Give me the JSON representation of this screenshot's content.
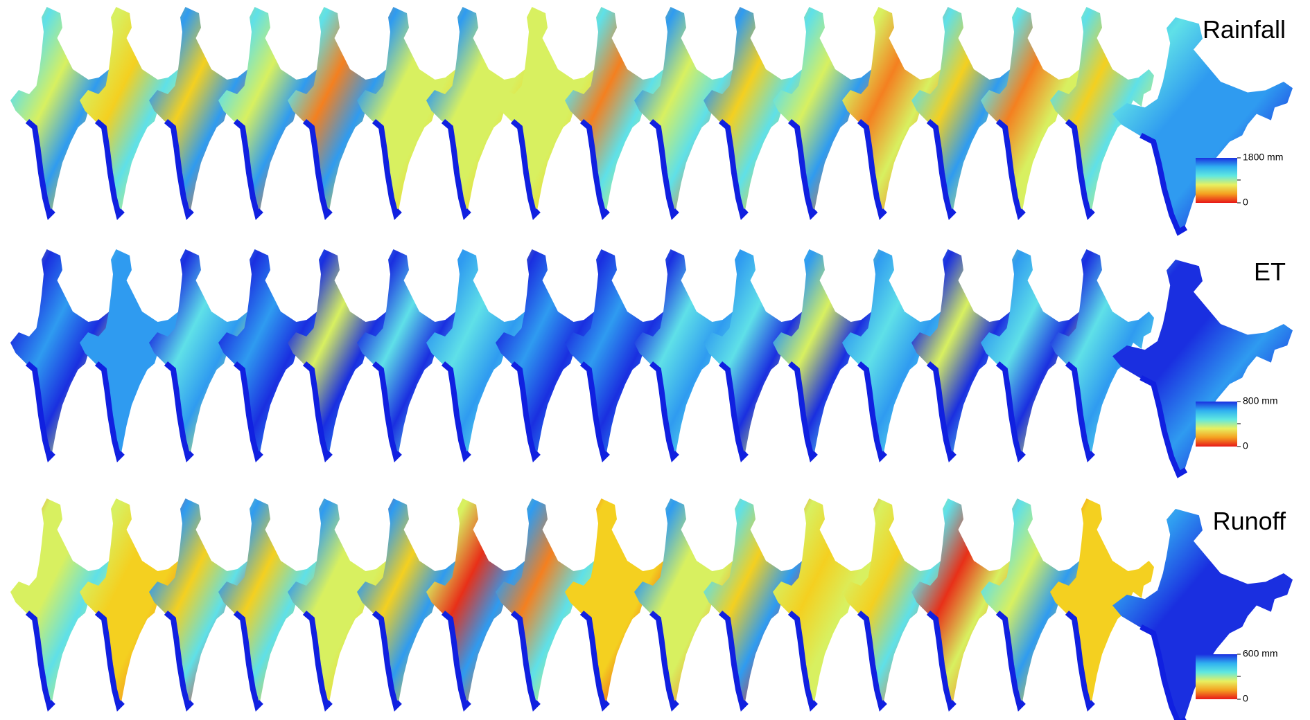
{
  "panels": [
    {
      "title": "Rainfall",
      "colorbar": {
        "max_label": "1800 mm",
        "min_label": "0"
      }
    },
    {
      "title": "ET",
      "colorbar": {
        "max_label": "800 mm",
        "min_label": "0"
      }
    },
    {
      "title": "Runoff",
      "colorbar": {
        "max_label": "600 mm",
        "min_label": "0"
      }
    }
  ]
}
